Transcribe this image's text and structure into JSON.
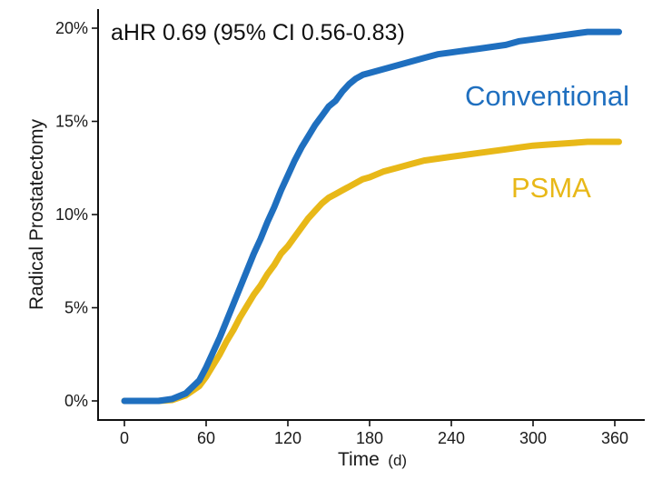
{
  "chart_data": {
    "type": "line",
    "annotation": "aHR 0.69 (95% CI 0.56-0.83)",
    "xlabel": "Time",
    "xlabel_unit": "(d)",
    "ylabel": "Radical Prostatectomy",
    "xlim": [
      0,
      370
    ],
    "ylim": [
      0,
      20
    ],
    "x_ticks": [
      {
        "value": 0,
        "label": "0"
      },
      {
        "value": 60,
        "label": "60"
      },
      {
        "value": 120,
        "label": "120"
      },
      {
        "value": 180,
        "label": "180"
      },
      {
        "value": 240,
        "label": "240"
      },
      {
        "value": 300,
        "label": "300"
      },
      {
        "value": 360,
        "label": "360"
      }
    ],
    "y_ticks": [
      {
        "value": 0,
        "label": "0%"
      },
      {
        "value": 5,
        "label": "5%"
      },
      {
        "value": 10,
        "label": "10%"
      },
      {
        "value": 15,
        "label": "15%"
      },
      {
        "value": 20,
        "label": "20%"
      }
    ],
    "series": [
      {
        "name": "Conventional",
        "color": "#1f6fbf",
        "x": [
          0,
          15,
          25,
          35,
          45,
          55,
          60,
          65,
          70,
          75,
          80,
          85,
          90,
          95,
          100,
          105,
          110,
          115,
          120,
          125,
          130,
          135,
          140,
          145,
          150,
          155,
          160,
          165,
          170,
          175,
          180,
          190,
          200,
          210,
          220,
          230,
          240,
          250,
          260,
          270,
          280,
          290,
          300,
          310,
          320,
          330,
          340,
          350,
          363
        ],
        "values": [
          0,
          0,
          0,
          0.1,
          0.4,
          1.1,
          1.8,
          2.6,
          3.4,
          4.3,
          5.2,
          6.1,
          7.0,
          7.9,
          8.7,
          9.6,
          10.4,
          11.3,
          12.1,
          12.9,
          13.6,
          14.2,
          14.8,
          15.3,
          15.8,
          16.1,
          16.6,
          17.0,
          17.3,
          17.5,
          17.6,
          17.8,
          18.0,
          18.2,
          18.4,
          18.6,
          18.7,
          18.8,
          18.9,
          19.0,
          19.1,
          19.3,
          19.4,
          19.5,
          19.6,
          19.7,
          19.8,
          19.8,
          19.8
        ]
      },
      {
        "name": "PSMA",
        "color": "#e8b818",
        "x": [
          0,
          15,
          25,
          35,
          45,
          55,
          60,
          65,
          70,
          75,
          80,
          85,
          90,
          95,
          100,
          105,
          110,
          115,
          120,
          125,
          130,
          135,
          140,
          145,
          150,
          155,
          160,
          165,
          170,
          175,
          180,
          190,
          200,
          210,
          220,
          230,
          240,
          250,
          260,
          270,
          280,
          290,
          300,
          310,
          320,
          330,
          340,
          350,
          363
        ],
        "values": [
          0,
          0,
          0,
          0.05,
          0.3,
          0.8,
          1.3,
          1.9,
          2.5,
          3.2,
          3.8,
          4.5,
          5.1,
          5.7,
          6.2,
          6.8,
          7.3,
          7.9,
          8.3,
          8.8,
          9.3,
          9.8,
          10.2,
          10.6,
          10.9,
          11.1,
          11.3,
          11.5,
          11.7,
          11.9,
          12.0,
          12.3,
          12.5,
          12.7,
          12.9,
          13.0,
          13.1,
          13.2,
          13.3,
          13.4,
          13.5,
          13.6,
          13.7,
          13.75,
          13.8,
          13.85,
          13.9,
          13.9,
          13.9
        ]
      }
    ]
  }
}
